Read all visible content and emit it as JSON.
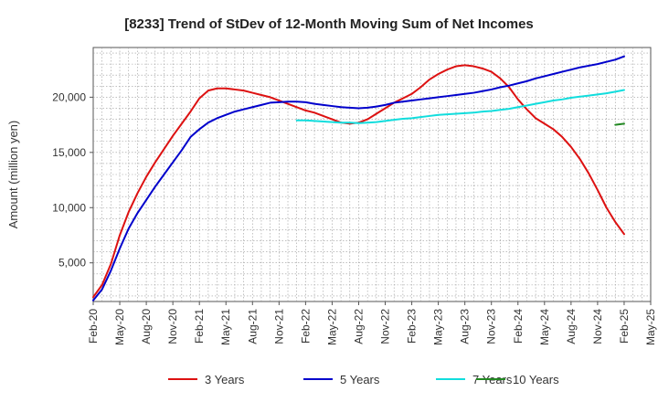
{
  "chart_data": {
    "type": "line",
    "title": "[8233]  Trend of StDev of 12-Month Moving Sum of Net Incomes",
    "xlabel": "",
    "ylabel": "Amount (million yen)",
    "ylim": [
      1500,
      24500
    ],
    "yticks": [
      5000,
      10000,
      15000,
      20000
    ],
    "ytick_labels": [
      "5,000",
      "10,000",
      "15,000",
      "20,000"
    ],
    "xlim": [
      "2020-02",
      "2025-05"
    ],
    "xtick_labels": [
      "Feb-20",
      "May-20",
      "Aug-20",
      "Nov-20",
      "Feb-21",
      "May-21",
      "Aug-21",
      "Nov-21",
      "Feb-22",
      "May-22",
      "Aug-22",
      "Nov-22",
      "Feb-23",
      "May-23",
      "Aug-23",
      "Nov-23",
      "Feb-24",
      "May-24",
      "Aug-24",
      "Nov-24",
      "Feb-25",
      "May-25"
    ],
    "grid": true,
    "legend_position": "bottom",
    "series": [
      {
        "name": "3 Years",
        "color": "#dd1111",
        "points": [
          [
            "2020-02",
            1900
          ],
          [
            "2020-03",
            3000
          ],
          [
            "2020-04",
            4900
          ],
          [
            "2020-05",
            7500
          ],
          [
            "2020-06",
            9600
          ],
          [
            "2020-07",
            11300
          ],
          [
            "2020-08",
            12800
          ],
          [
            "2020-09",
            14100
          ],
          [
            "2020-10",
            15300
          ],
          [
            "2020-11",
            16500
          ],
          [
            "2020-12",
            17600
          ],
          [
            "2021-01",
            18700
          ],
          [
            "2021-02",
            19900
          ],
          [
            "2021-03",
            20600
          ],
          [
            "2021-04",
            20800
          ],
          [
            "2021-05",
            20800
          ],
          [
            "2021-06",
            20700
          ],
          [
            "2021-07",
            20600
          ],
          [
            "2021-08",
            20400
          ],
          [
            "2021-09",
            20200
          ],
          [
            "2021-10",
            20000
          ],
          [
            "2021-11",
            19700
          ],
          [
            "2021-12",
            19400
          ],
          [
            "2022-01",
            19100
          ],
          [
            "2022-02",
            18800
          ],
          [
            "2022-03",
            18600
          ],
          [
            "2022-04",
            18300
          ],
          [
            "2022-05",
            18000
          ],
          [
            "2022-06",
            17700
          ],
          [
            "2022-07",
            17600
          ],
          [
            "2022-08",
            17700
          ],
          [
            "2022-09",
            18000
          ],
          [
            "2022-10",
            18500
          ],
          [
            "2022-11",
            19000
          ],
          [
            "2022-12",
            19500
          ],
          [
            "2023-01",
            19900
          ],
          [
            "2023-02",
            20300
          ],
          [
            "2023-03",
            20900
          ],
          [
            "2023-04",
            21600
          ],
          [
            "2023-05",
            22100
          ],
          [
            "2023-06",
            22500
          ],
          [
            "2023-07",
            22800
          ],
          [
            "2023-08",
            22900
          ],
          [
            "2023-09",
            22800
          ],
          [
            "2023-10",
            22600
          ],
          [
            "2023-11",
            22300
          ],
          [
            "2023-12",
            21700
          ],
          [
            "2024-01",
            20900
          ],
          [
            "2024-02",
            19800
          ],
          [
            "2024-03",
            18900
          ],
          [
            "2024-04",
            18100
          ],
          [
            "2024-05",
            17600
          ],
          [
            "2024-06",
            17100
          ],
          [
            "2024-07",
            16400
          ],
          [
            "2024-08",
            15500
          ],
          [
            "2024-09",
            14400
          ],
          [
            "2024-10",
            13100
          ],
          [
            "2024-11",
            11600
          ],
          [
            "2024-12",
            10000
          ],
          [
            "2025-01",
            8700
          ],
          [
            "2025-02",
            7600
          ]
        ]
      },
      {
        "name": "5 Years",
        "color": "#0000cc",
        "points": [
          [
            "2020-02",
            1600
          ],
          [
            "2020-03",
            2600
          ],
          [
            "2020-04",
            4300
          ],
          [
            "2020-05",
            6300
          ],
          [
            "2020-06",
            8100
          ],
          [
            "2020-07",
            9500
          ],
          [
            "2020-08",
            10700
          ],
          [
            "2020-09",
            11900
          ],
          [
            "2020-10",
            13000
          ],
          [
            "2020-11",
            14100
          ],
          [
            "2020-12",
            15200
          ],
          [
            "2021-01",
            16400
          ],
          [
            "2021-02",
            17100
          ],
          [
            "2021-03",
            17700
          ],
          [
            "2021-04",
            18100
          ],
          [
            "2021-05",
            18400
          ],
          [
            "2021-06",
            18700
          ],
          [
            "2021-07",
            18900
          ],
          [
            "2021-08",
            19100
          ],
          [
            "2021-09",
            19300
          ],
          [
            "2021-10",
            19500
          ],
          [
            "2021-11",
            19550
          ],
          [
            "2021-12",
            19600
          ],
          [
            "2022-01",
            19600
          ],
          [
            "2022-02",
            19550
          ],
          [
            "2022-03",
            19400
          ],
          [
            "2022-04",
            19300
          ],
          [
            "2022-05",
            19200
          ],
          [
            "2022-06",
            19100
          ],
          [
            "2022-07",
            19050
          ],
          [
            "2022-08",
            19000
          ],
          [
            "2022-09",
            19050
          ],
          [
            "2022-10",
            19150
          ],
          [
            "2022-11",
            19300
          ],
          [
            "2022-12",
            19500
          ],
          [
            "2023-01",
            19600
          ],
          [
            "2023-02",
            19700
          ],
          [
            "2023-03",
            19800
          ],
          [
            "2023-04",
            19900
          ],
          [
            "2023-05",
            20000
          ],
          [
            "2023-06",
            20100
          ],
          [
            "2023-07",
            20200
          ],
          [
            "2023-08",
            20300
          ],
          [
            "2023-09",
            20400
          ],
          [
            "2023-10",
            20550
          ],
          [
            "2023-11",
            20700
          ],
          [
            "2023-12",
            20900
          ],
          [
            "2024-01",
            21050
          ],
          [
            "2024-02",
            21250
          ],
          [
            "2024-03",
            21450
          ],
          [
            "2024-04",
            21700
          ],
          [
            "2024-05",
            21900
          ],
          [
            "2024-06",
            22100
          ],
          [
            "2024-07",
            22300
          ],
          [
            "2024-08",
            22500
          ],
          [
            "2024-09",
            22700
          ],
          [
            "2024-10",
            22850
          ],
          [
            "2024-11",
            23000
          ],
          [
            "2024-12",
            23200
          ],
          [
            "2025-01",
            23400
          ],
          [
            "2025-02",
            23700
          ]
        ]
      },
      {
        "name": "7 Years",
        "color": "#11dddd",
        "points": [
          [
            "2022-01",
            17900
          ],
          [
            "2022-02",
            17900
          ],
          [
            "2022-03",
            17850
          ],
          [
            "2022-04",
            17800
          ],
          [
            "2022-05",
            17750
          ],
          [
            "2022-06",
            17700
          ],
          [
            "2022-07",
            17700
          ],
          [
            "2022-08",
            17650
          ],
          [
            "2022-09",
            17700
          ],
          [
            "2022-10",
            17750
          ],
          [
            "2022-11",
            17850
          ],
          [
            "2022-12",
            17950
          ],
          [
            "2023-01",
            18050
          ],
          [
            "2023-02",
            18100
          ],
          [
            "2023-03",
            18200
          ],
          [
            "2023-04",
            18300
          ],
          [
            "2023-05",
            18400
          ],
          [
            "2023-06",
            18450
          ],
          [
            "2023-07",
            18500
          ],
          [
            "2023-08",
            18550
          ],
          [
            "2023-09",
            18600
          ],
          [
            "2023-10",
            18700
          ],
          [
            "2023-11",
            18750
          ],
          [
            "2023-12",
            18850
          ],
          [
            "2024-01",
            18950
          ],
          [
            "2024-02",
            19100
          ],
          [
            "2024-03",
            19250
          ],
          [
            "2024-04",
            19400
          ],
          [
            "2024-05",
            19550
          ],
          [
            "2024-06",
            19700
          ],
          [
            "2024-07",
            19800
          ],
          [
            "2024-08",
            19950
          ],
          [
            "2024-09",
            20050
          ],
          [
            "2024-10",
            20150
          ],
          [
            "2024-11",
            20250
          ],
          [
            "2024-12",
            20350
          ],
          [
            "2025-01",
            20500
          ],
          [
            "2025-02",
            20650
          ]
        ]
      },
      {
        "name": "10 Years",
        "color": "#228822",
        "points": [
          [
            "2025-01",
            17500
          ],
          [
            "2025-02",
            17600
          ]
        ]
      }
    ]
  }
}
